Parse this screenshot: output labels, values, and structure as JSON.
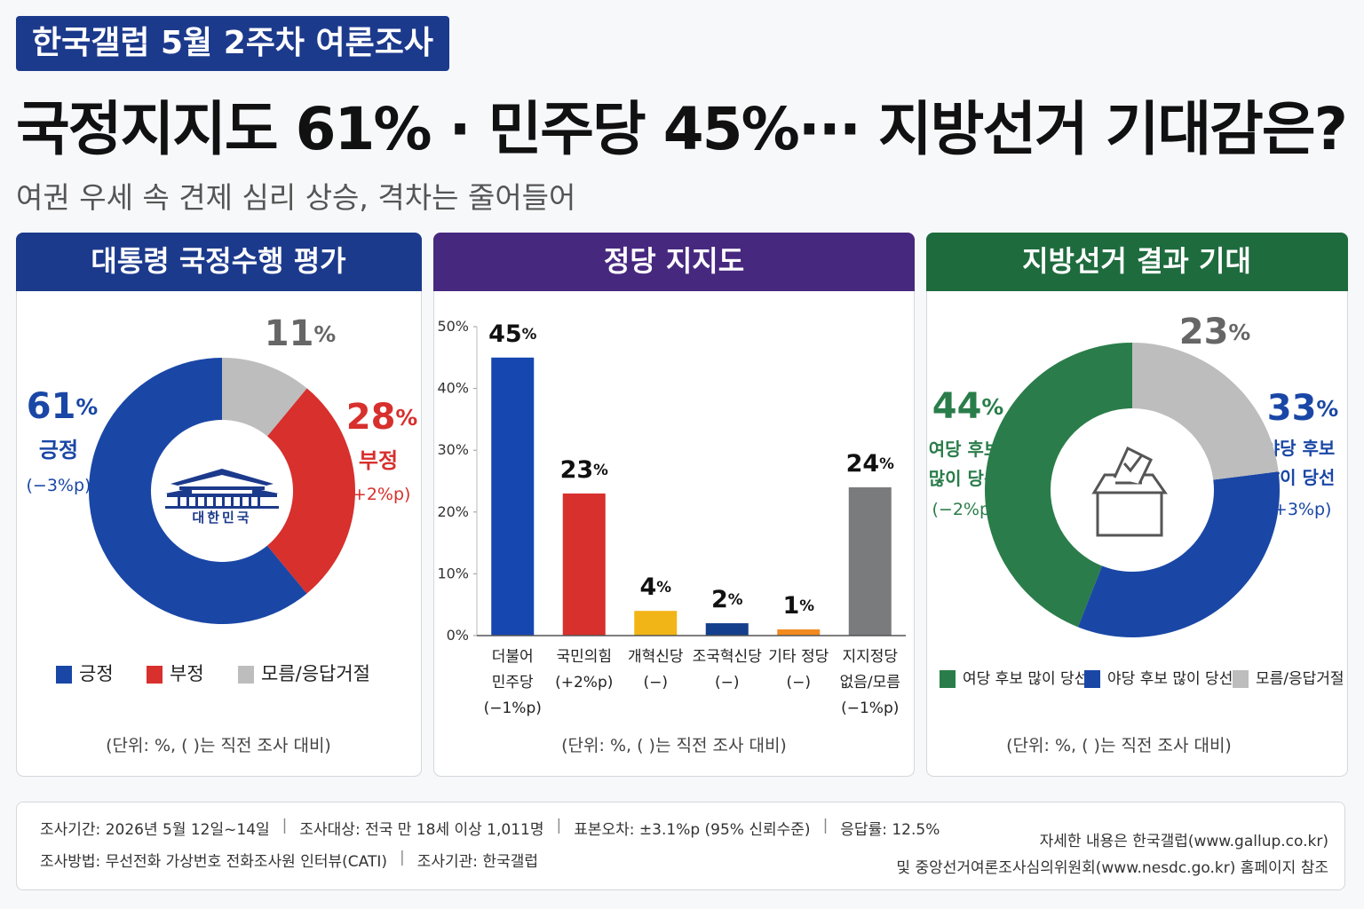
{
  "header": {
    "badge": "한국갤럽 5월 2주차 여론조사",
    "title": "국정지지도 61% · 민주당 45%··· 지방선거 기대감은?",
    "subtitle": "여권 우세 속 견제 심리 상승, 격차는 줄어들어"
  },
  "chart_data": [
    {
      "type": "donut",
      "title": "대통령 국정수행 평가",
      "categories": [
        "긍정",
        "부정",
        "모름/응답거절"
      ],
      "values": [
        61,
        28,
        11
      ],
      "value_labels": [
        "61%",
        "28%",
        "11%"
      ],
      "slice_labels": [
        "긍정",
        "부정",
        null
      ],
      "changes": [
        "(−3%p)",
        "(+2%p)",
        null
      ],
      "colors": [
        "#1a47a6",
        "#d7302d",
        "#bdbdbd"
      ],
      "center_label": "대한민국",
      "note": "(단위: %, ( )는 직전 조사 대비)"
    },
    {
      "type": "bar",
      "title": "정당 지지도",
      "categories": [
        "더불어\n민주당",
        "국민의힘",
        "개혁신당",
        "조국혁신당",
        "기타 정당",
        "지지정당\n없음/모름"
      ],
      "changes": [
        "(−1%p)",
        "(+2%p)",
        "(−)",
        "(−)",
        "(−)",
        "(−1%p)"
      ],
      "values": [
        45,
        23,
        4,
        2,
        1,
        24
      ],
      "value_labels": [
        "45%",
        "23%",
        "4%",
        "2%",
        "1%",
        "24%"
      ],
      "colors": [
        "#1647b0",
        "#d7302d",
        "#f2b517",
        "#133f8c",
        "#f28a1e",
        "#7a7b7d"
      ],
      "ylim": [
        0,
        50
      ],
      "yticks": [
        {
          "value": 0,
          "label": "0%"
        },
        {
          "value": 10,
          "label": "10%"
        },
        {
          "value": 20,
          "label": "20%"
        },
        {
          "value": 30,
          "label": "30%"
        },
        {
          "value": 40,
          "label": "40%"
        },
        {
          "value": 50,
          "label": "50%"
        }
      ],
      "note": "(단위: %, ( )는 직전 조사 대비)"
    },
    {
      "type": "donut",
      "title": "지방선거 결과 기대",
      "categories": [
        "여당 후보 많이 당선",
        "야당 후보 많이 당선",
        "모름/응답거절"
      ],
      "values": [
        44,
        33,
        23
      ],
      "value_labels": [
        "44%",
        "33%",
        "23%"
      ],
      "slice_labels": [
        "여당 후보\n많이 당선",
        "야당 후보\n많이 당선",
        null
      ],
      "changes": [
        "(−2%p)",
        "(+3%p)",
        null
      ],
      "colors": [
        "#2a7d4a",
        "#1a47a6",
        "#bdbdbd"
      ],
      "note": "(단위: %, ( )는 직전 조사 대비)"
    }
  ],
  "footer": {
    "items": [
      "조사기간: 2026년 5월 12일~14일",
      "조사대상: 전국 만 18세 이상 1,011명",
      "표본오차: ±3.1%p (95% 신뢰수준)",
      "응답률: 12.5%",
      "조사방법: 무선전화 가상번호 전화조사원 인터뷰(CATI)",
      "조사기관: 한국갤럽"
    ],
    "source": [
      "자세한 내용은 한국갤럽(www.gallup.co.kr)",
      "및 중앙선거여론조사심의위원회(www.nesdc.go.kr) 홈페이지 참조"
    ]
  }
}
